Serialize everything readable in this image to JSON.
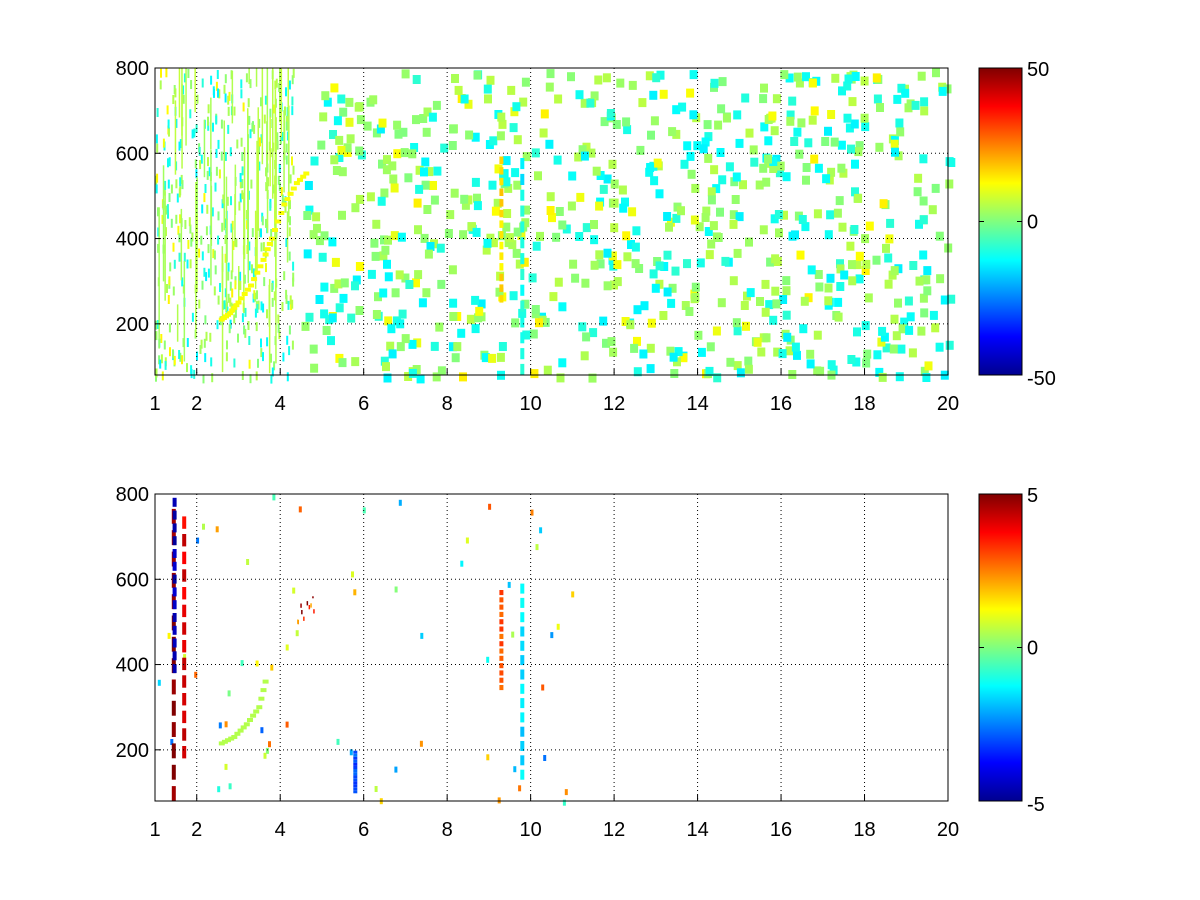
{
  "chart_data": [
    {
      "type": "heatmap",
      "title": "",
      "xlabel": "",
      "ylabel": "",
      "xlim": [
        1,
        20
      ],
      "ylim": [
        80,
        800
      ],
      "xticks": [
        "1",
        "2",
        "4",
        "6",
        "8",
        "10",
        "12",
        "14",
        "16",
        "18",
        "20"
      ],
      "xtick_values": [
        1,
        2,
        4,
        6,
        8,
        10,
        12,
        14,
        16,
        18,
        20
      ],
      "yticks": [
        "200",
        "400",
        "600",
        "800"
      ],
      "ytick_values": [
        200,
        400,
        600,
        800
      ],
      "grid": true,
      "colormap": "jet",
      "clim": [
        -50,
        50
      ],
      "colorbar_ticks": [
        "50",
        "0",
        "-50"
      ],
      "colorbar_tick_values": [
        50,
        0,
        -50
      ],
      "approx_features": [
        {
          "desc": "dense vertical streaks",
          "x_range": [
            1.0,
            4.2
          ],
          "y_range": [
            80,
            800
          ],
          "value": 5
        },
        {
          "desc": "curved trace",
          "x": [
            2.6,
            2.8,
            3.0,
            3.3,
            3.6,
            3.8,
            4.1,
            4.4,
            4.7
          ],
          "y": [
            210,
            225,
            250,
            290,
            350,
            400,
            480,
            530,
            560
          ],
          "value": 12
        },
        {
          "desc": "vertical stripe",
          "x": 9.8,
          "y_range": [
            80,
            600
          ],
          "value": -12
        },
        {
          "desc": "vertical stripe",
          "x": 9.3,
          "y_range": [
            250,
            600
          ],
          "value": 15
        },
        {
          "desc": "sparse scattered blocks",
          "x_range": [
            4.5,
            20
          ],
          "y_range": [
            80,
            800
          ],
          "value": 3
        }
      ]
    },
    {
      "type": "heatmap",
      "title": "",
      "xlabel": "",
      "ylabel": "",
      "xlim": [
        1,
        20
      ],
      "ylim": [
        80,
        800
      ],
      "xticks": [
        "1",
        "2",
        "4",
        "6",
        "8",
        "10",
        "12",
        "14",
        "16",
        "18",
        "20"
      ],
      "xtick_values": [
        1,
        2,
        4,
        6,
        8,
        10,
        12,
        14,
        16,
        18,
        20
      ],
      "yticks": [
        "200",
        "400",
        "600",
        "800"
      ],
      "ytick_values": [
        200,
        400,
        600,
        800
      ],
      "grid": true,
      "colormap": "jet",
      "clim": [
        -5,
        5
      ],
      "colorbar_ticks": [
        "5",
        "0",
        "-5"
      ],
      "colorbar_tick_values": [
        5,
        0,
        -5
      ],
      "approx_features": [
        {
          "desc": "vertical line",
          "x": 1.45,
          "y_range": [
            80,
            780
          ],
          "value": 5
        },
        {
          "desc": "vertical line",
          "x": 1.47,
          "y_range": [
            380,
            800
          ],
          "value": -4.5
        },
        {
          "desc": "vertical line",
          "x": 1.7,
          "y_range": [
            180,
            760
          ],
          "value": 4
        },
        {
          "desc": "curved trace",
          "x": [
            2.6,
            2.9,
            3.2,
            3.5,
            3.7
          ],
          "y": [
            215,
            230,
            260,
            300,
            380
          ],
          "value": 0.5
        },
        {
          "desc": "small cluster",
          "x_range": [
            4.4,
            4.8
          ],
          "y_range": [
            480,
            560
          ],
          "value": 4
        },
        {
          "desc": "vertical stripe",
          "x": 5.8,
          "y_range": [
            100,
            200
          ],
          "value": -3
        },
        {
          "desc": "vertical stripe",
          "x": 9.3,
          "y_range": [
            340,
            580
          ],
          "value": 3
        },
        {
          "desc": "vertical stripe",
          "x": 9.8,
          "y_range": [
            130,
            600
          ],
          "value": -1.5
        }
      ]
    }
  ]
}
